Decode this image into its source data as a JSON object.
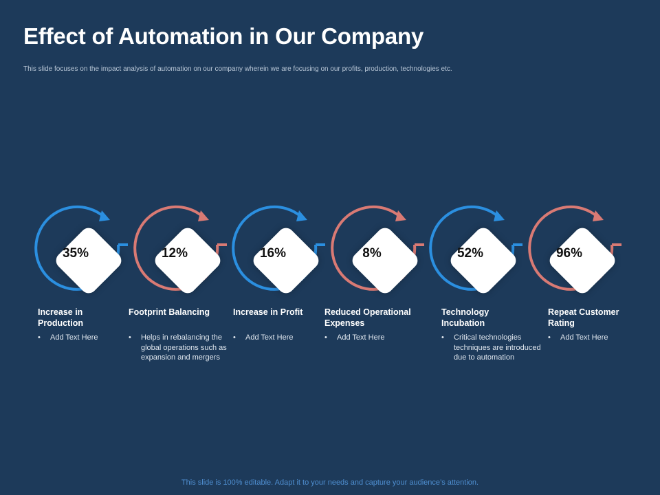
{
  "slide": {
    "title": "Effect of Automation in Our Company",
    "subtitle": "This slide focuses on the impact analysis of automation on our company wherein we are focusing on our profits, production, technologies etc.",
    "footer": "This slide is 100% editable. Adapt it to your needs and capture your audience’s attention."
  },
  "colors": {
    "background": "#1d3a5a",
    "blue": "#2b8fe0",
    "red": "#d97a74",
    "tile": "#ffffff"
  },
  "steps": [
    {
      "percent": "35%",
      "label": "Increase in Production",
      "bullet": "Add Text Here",
      "color": "#2b8fe0"
    },
    {
      "percent": "12%",
      "label": "Footprint Balancing",
      "bullet": "Helps in rebalancing the global operations such as expansion and mergers",
      "color": "#d97a74"
    },
    {
      "percent": "16%",
      "label": "Increase in Profit",
      "bullet": "Add Text Here",
      "color": "#2b8fe0"
    },
    {
      "percent": "8%",
      "label": "Reduced Operational Expenses",
      "bullet": "Add Text Here",
      "color": "#d97a74"
    },
    {
      "percent": "52%",
      "label": "Technology Incubation",
      "bullet": "Critical technologies techniques are introduced due to automation",
      "color": "#2b8fe0"
    },
    {
      "percent": "96%",
      "label": "Repeat Customer Rating",
      "bullet": "Add Text Here",
      "color": "#d97a74"
    }
  ]
}
